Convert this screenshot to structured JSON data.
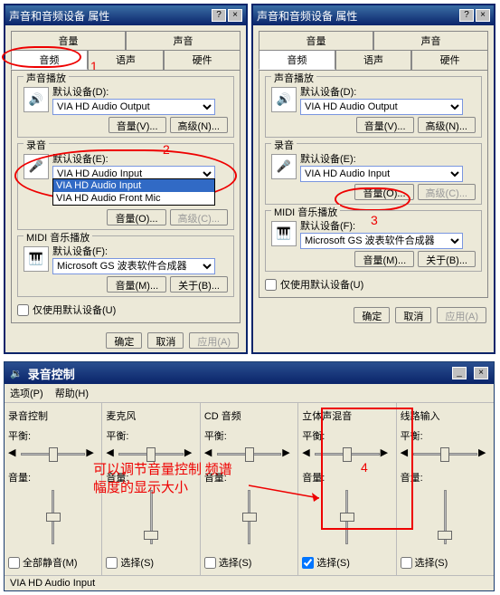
{
  "colors": {
    "titlebar_bg": [
      "#3a6ea5",
      "#0a246a"
    ],
    "dialog_bg": "#ece9d8",
    "annotation": "#e00000",
    "select_blue": "#316ac5"
  },
  "shared": {
    "window_title": "声音和音频设备 属性",
    "help_btn": "?",
    "close_btn": "×",
    "tabs_row1": [
      "音量",
      "声音"
    ],
    "tabs_row2": [
      "音频",
      "语声",
      "硬件"
    ],
    "active_tab": "音频",
    "group_playback": "声音播放",
    "group_record": "录音",
    "group_midi": "MIDI 音乐播放",
    "default_device_label_d": "默认设备(D):",
    "default_device_label_e": "默认设备(E):",
    "default_device_label_f": "默认设备(F):",
    "playback_device": "VIA HD Audio Output",
    "record_device": "VIA HD Audio Input",
    "midi_device": "Microsoft GS 波表软件合成器",
    "dropdown_options": [
      "VIA HD Audio Input",
      "VIA HD Audio Front Mic"
    ],
    "btn_volume_v": "音量(V)...",
    "btn_advanced_n": "高级(N)...",
    "btn_volume_o": "音量(O)...",
    "btn_advanced_c": "高级(C)...",
    "btn_volume_m": "音量(M)...",
    "btn_about_b": "关于(B)...",
    "checkbox_default": "仅使用默认设备(U)",
    "btn_ok": "确定",
    "btn_cancel": "取消",
    "btn_apply": "应用(A)"
  },
  "annotation": {
    "1": "1",
    "2": "2",
    "3": "3",
    "4": "4"
  },
  "mixer": {
    "title": "录音控制",
    "menu_options": "选项(P)",
    "menu_help": "帮助(H)",
    "channels": [
      {
        "name": "录音控制",
        "balance": "平衡:",
        "volume": "音量:",
        "check_label": "全部静音(M)",
        "checked": false,
        "thumb_pos": 0.5
      },
      {
        "name": "麦克风",
        "balance": "平衡:",
        "volume": "音量:",
        "check_label": "选择(S)",
        "checked": false,
        "thumb_pos": 0.9
      },
      {
        "name": "CD 音频",
        "balance": "平衡:",
        "volume": "音量:",
        "check_label": "选择(S)",
        "checked": false,
        "thumb_pos": 0.5
      },
      {
        "name": "立体声混音",
        "balance": "平衡:",
        "volume": "音量:",
        "check_label": "选择(S)",
        "checked": true,
        "thumb_pos": 0.5
      },
      {
        "name": "线路输入",
        "balance": "平衡:",
        "volume": "音量:",
        "check_label": "选择(S)",
        "checked": false,
        "thumb_pos": 0.9
      }
    ],
    "status": "VIA HD Audio Input",
    "red_text": "可以调节音量控制 频谱\n幅度的显示大小"
  }
}
